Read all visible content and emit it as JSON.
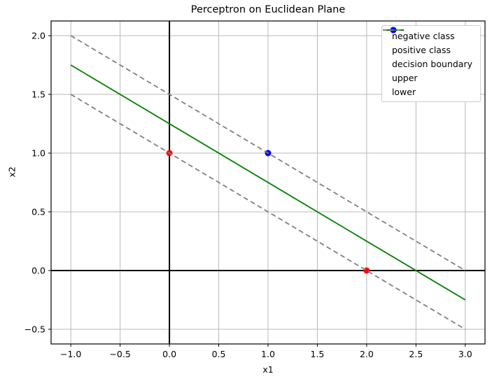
{
  "chart_data": {
    "type": "scatter",
    "title": "Perceptron on Euclidean Plane",
    "xlabel": "x1",
    "ylabel": "x2",
    "xlim": [
      -1.2,
      3.2
    ],
    "ylim": [
      -0.625,
      2.125
    ],
    "xticks": [
      -1.0,
      -0.5,
      0.0,
      0.5,
      1.0,
      1.5,
      2.0,
      2.5,
      3.0
    ],
    "yticks": [
      -0.5,
      0.0,
      0.5,
      1.0,
      1.5,
      2.0
    ],
    "grid": true,
    "grid_color": "#b8b8b8",
    "frame_color": "#000000",
    "axis_lines": {
      "x": 0,
      "y": 0,
      "color": "#000000"
    },
    "scatter_series": [
      {
        "name": "negative class",
        "color": "#ff0000",
        "points": [
          [
            0,
            1
          ],
          [
            2,
            0
          ]
        ]
      },
      {
        "name": "positive class",
        "color": "#0000ff",
        "points": [
          [
            1,
            1
          ]
        ]
      }
    ],
    "line_series": [
      {
        "name": "decision boundary",
        "color": "#008000",
        "style": "solid",
        "x": [
          -1,
          3
        ],
        "y": [
          1.75,
          -0.25
        ]
      },
      {
        "name": "upper",
        "color": "#808080",
        "style": "dashed",
        "x": [
          -1,
          3
        ],
        "y": [
          2.0,
          0.0
        ]
      },
      {
        "name": "lower",
        "color": "#808080",
        "style": "dashed",
        "x": [
          -1,
          3
        ],
        "y": [
          1.5,
          -0.5
        ]
      }
    ],
    "legend": {
      "position": "upper right",
      "entries": [
        {
          "label": "negative class",
          "marker": "dot",
          "color": "#ff0000"
        },
        {
          "label": "positive class",
          "marker": "dot",
          "color": "#0000ff"
        },
        {
          "label": "decision boundary",
          "marker": "line",
          "color": "#008000"
        },
        {
          "label": "upper",
          "marker": "dashed-line",
          "color": "#808080"
        },
        {
          "label": "lower",
          "marker": "dashed-line",
          "color": "#808080"
        }
      ]
    }
  }
}
